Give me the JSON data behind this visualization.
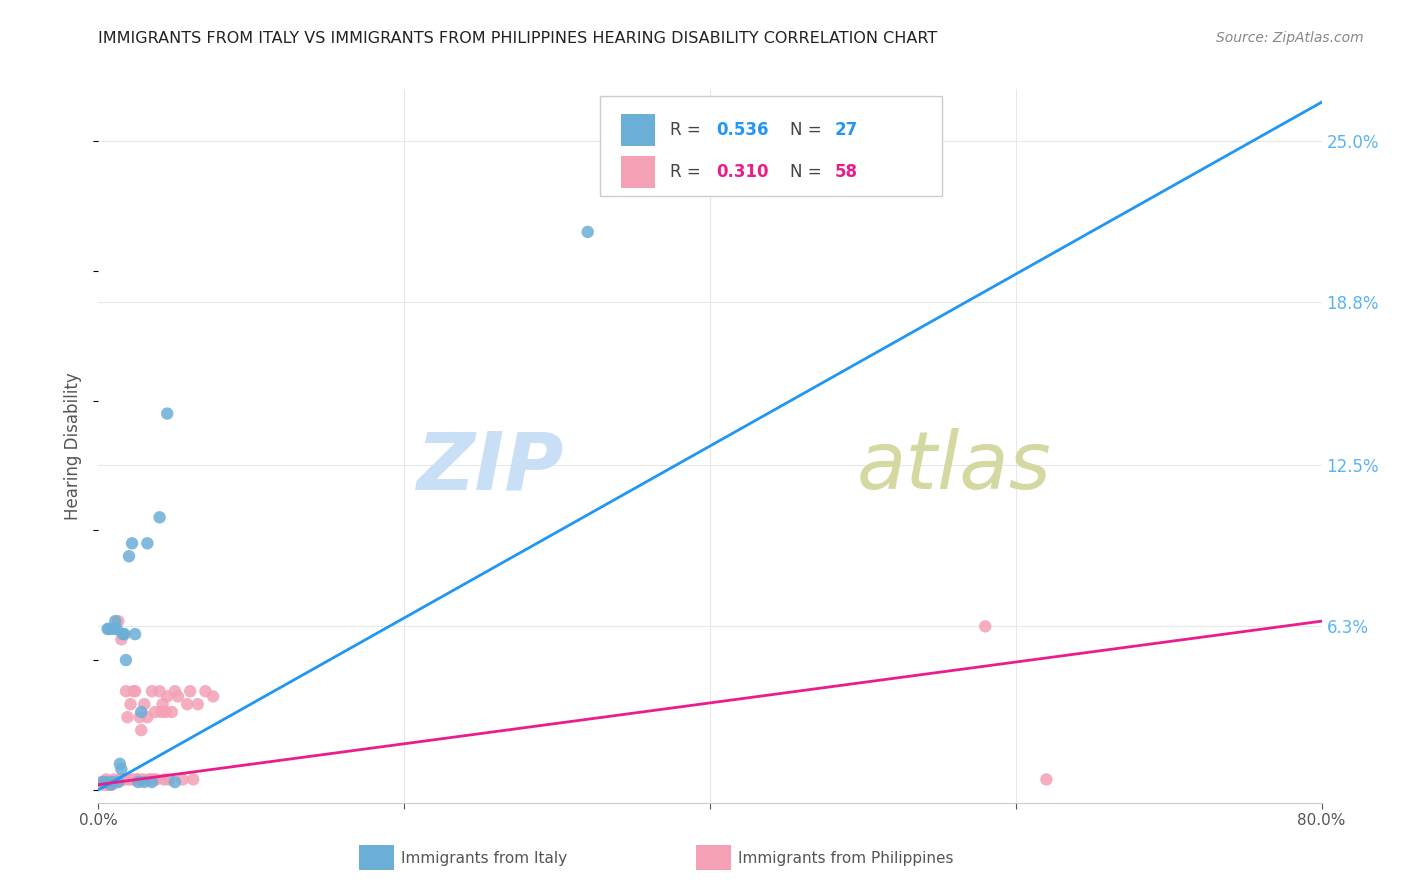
{
  "title": "IMMIGRANTS FROM ITALY VS IMMIGRANTS FROM PHILIPPINES HEARING DISABILITY CORRELATION CHART",
  "source": "Source: ZipAtlas.com",
  "ylabel": "Hearing Disability",
  "ytick_labels": [
    "25.0%",
    "18.8%",
    "12.5%",
    "6.3%"
  ],
  "ytick_values": [
    0.25,
    0.188,
    0.125,
    0.063
  ],
  "xlim": [
    0.0,
    0.8
  ],
  "ylim": [
    -0.005,
    0.27
  ],
  "legend_italy_R": "0.536",
  "legend_italy_N": "27",
  "legend_phil_R": "0.310",
  "legend_phil_N": "58",
  "italy_color": "#6baed6",
  "phil_color": "#f4a0b5",
  "italy_line_color": "#2196f3",
  "phil_line_color": "#e91e8c",
  "dashed_line_color": "#b0b0b0",
  "italy_scatter_x": [
    0.003,
    0.005,
    0.006,
    0.007,
    0.008,
    0.009,
    0.01,
    0.011,
    0.012,
    0.013,
    0.014,
    0.015,
    0.016,
    0.017,
    0.018,
    0.02,
    0.022,
    0.024,
    0.026,
    0.028,
    0.03,
    0.032,
    0.035,
    0.04,
    0.045,
    0.05,
    0.32
  ],
  "italy_scatter_y": [
    0.003,
    0.003,
    0.062,
    0.062,
    0.002,
    0.003,
    0.062,
    0.065,
    0.062,
    0.003,
    0.01,
    0.008,
    0.06,
    0.06,
    0.05,
    0.09,
    0.095,
    0.06,
    0.003,
    0.03,
    0.003,
    0.095,
    0.003,
    0.105,
    0.145,
    0.003,
    0.215
  ],
  "phil_scatter_x": [
    0.002,
    0.003,
    0.004,
    0.005,
    0.005,
    0.006,
    0.006,
    0.007,
    0.007,
    0.008,
    0.009,
    0.01,
    0.011,
    0.012,
    0.013,
    0.014,
    0.015,
    0.016,
    0.017,
    0.018,
    0.019,
    0.02,
    0.021,
    0.022,
    0.023,
    0.024,
    0.025,
    0.026,
    0.027,
    0.028,
    0.029,
    0.03,
    0.032,
    0.033,
    0.034,
    0.035,
    0.036,
    0.037,
    0.038,
    0.04,
    0.041,
    0.042,
    0.043,
    0.044,
    0.045,
    0.046,
    0.048,
    0.05,
    0.052,
    0.055,
    0.058,
    0.06,
    0.062,
    0.065,
    0.07,
    0.075,
    0.58,
    0.62
  ],
  "phil_scatter_y": [
    0.003,
    0.002,
    0.003,
    0.002,
    0.004,
    0.003,
    0.002,
    0.003,
    0.002,
    0.002,
    0.002,
    0.004,
    0.003,
    0.003,
    0.065,
    0.004,
    0.058,
    0.004,
    0.004,
    0.038,
    0.028,
    0.004,
    0.033,
    0.004,
    0.038,
    0.038,
    0.004,
    0.004,
    0.028,
    0.023,
    0.004,
    0.033,
    0.028,
    0.004,
    0.004,
    0.038,
    0.004,
    0.03,
    0.004,
    0.038,
    0.03,
    0.033,
    0.004,
    0.03,
    0.036,
    0.004,
    0.03,
    0.038,
    0.036,
    0.004,
    0.033,
    0.038,
    0.004,
    0.033,
    0.038,
    0.036,
    0.063,
    0.004
  ],
  "italy_trend_x0": 0.0,
  "italy_trend_x1": 0.8,
  "italy_trend_y0": 0.0,
  "italy_trend_y1": 0.265,
  "phil_trend_x0": 0.0,
  "phil_trend_x1": 0.8,
  "phil_trend_y0": 0.002,
  "phil_trend_y1": 0.065,
  "dashed_trend_x0": 0.0,
  "dashed_trend_x1": 0.8,
  "dashed_trend_y0": 0.0,
  "dashed_trend_y1": 0.265,
  "background_color": "#ffffff",
  "grid_color": "#e8e8e8",
  "title_color": "#222222",
  "axis_label_color": "#555555",
  "ytick_color": "#5ab4f0",
  "source_color": "#888888"
}
